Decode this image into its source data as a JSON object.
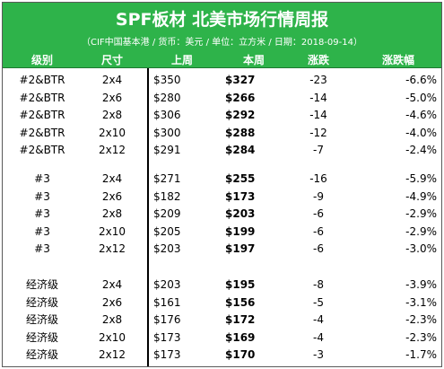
{
  "title": "SPF板材 北美市场行情周报",
  "subtitle": "（CIF中国基本港 / 货币：美元 / 单位：立方米 / 日期：2018-09-14）",
  "columns": [
    "级别",
    "尺寸",
    "上周",
    "本周",
    "涨跌",
    "涨跌幅"
  ],
  "groups": [
    {
      "rows": [
        {
          "grade": "#2&BTR",
          "size": "2x4",
          "last": "$350",
          "this": "$327",
          "chg": "-23",
          "pct": "-6.6%"
        },
        {
          "grade": "#2&BTR",
          "size": "2x6",
          "last": "$280",
          "this": "$266",
          "chg": "-14",
          "pct": "-5.0%"
        },
        {
          "grade": "#2&BTR",
          "size": "2x8",
          "last": "$306",
          "this": "$292",
          "chg": "-14",
          "pct": "-4.6%"
        },
        {
          "grade": "#2&BTR",
          "size": "2x10",
          "last": "$300",
          "this": "$288",
          "chg": "-12",
          "pct": "-4.0%"
        },
        {
          "grade": "#2&BTR",
          "size": "2x12",
          "last": "$291",
          "this": "$284",
          "chg": "-7",
          "pct": "-2.4%"
        }
      ]
    },
    {
      "rows": [
        {
          "grade": "#3",
          "size": "2x4",
          "last": "$271",
          "this": "$255",
          "chg": "-16",
          "pct": "-5.9%"
        },
        {
          "grade": "#3",
          "size": "2x6",
          "last": "$182",
          "this": "$173",
          "chg": "-9",
          "pct": "-4.9%"
        },
        {
          "grade": "#3",
          "size": "2x8",
          "last": "$209",
          "this": "$203",
          "chg": "-6",
          "pct": "-2.9%"
        },
        {
          "grade": "#3",
          "size": "2x10",
          "last": "$205",
          "this": "$199",
          "chg": "-6",
          "pct": "-2.9%"
        },
        {
          "grade": "#3",
          "size": "2x12",
          "last": "$203",
          "this": "$197",
          "chg": "-6",
          "pct": "-3.0%"
        }
      ]
    },
    {
      "rows": [
        {
          "grade": "经济级",
          "size": "2x4",
          "last": "$203",
          "this": "$195",
          "chg": "-8",
          "pct": "-3.9%"
        },
        {
          "grade": "经济级",
          "size": "2x6",
          "last": "$161",
          "this": "$156",
          "chg": "-5",
          "pct": "-3.1%"
        },
        {
          "grade": "经济级",
          "size": "2x8",
          "last": "$176",
          "this": "$172",
          "chg": "-4",
          "pct": "-2.3%"
        },
        {
          "grade": "经济级",
          "size": "2x10",
          "last": "$173",
          "this": "$169",
          "chg": "-4",
          "pct": "-2.3%"
        },
        {
          "grade": "经济级",
          "size": "2x12",
          "last": "$173",
          "this": "$170",
          "chg": "-3",
          "pct": "-1.7%"
        }
      ]
    }
  ],
  "colors": {
    "header_green": "#2eb34a",
    "header_text": "#ffffff"
  }
}
